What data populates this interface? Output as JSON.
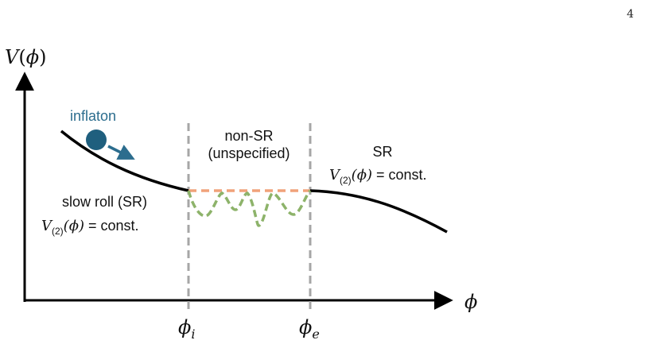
{
  "page_number": "4",
  "axes": {
    "y_label_fn": "V",
    "y_label_arg": "ϕ",
    "x_label": "ϕ"
  },
  "markers": {
    "phi_i_base": "ϕ",
    "phi_i_sub": "i",
    "phi_e_base": "ϕ",
    "phi_e_sub": "e"
  },
  "labels": {
    "inflaton": "inflaton",
    "non_sr_line1": "non-SR",
    "non_sr_line2": "(unspecified)",
    "sr_right": "SR",
    "slow_roll": "slow roll (SR)",
    "potential_fn": "V",
    "potential_sub": "(2)",
    "potential_arg": "(ϕ)",
    "potential_rhs": "= const."
  },
  "colors": {
    "curve": "#000000",
    "ball": "#1f5f7e",
    "arrow": "#2c6d8e",
    "dashed_divider": "#a6a6a6",
    "flat_dashed": "#f0a27a",
    "oscillation_dashed": "#8db36a"
  }
}
